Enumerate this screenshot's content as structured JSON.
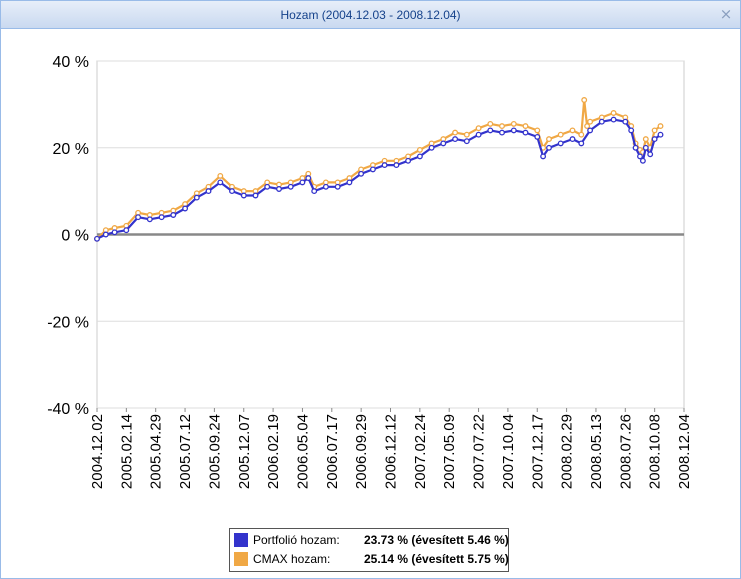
{
  "window": {
    "title": "Hozam (2004.12.03 - 2008.12.04)",
    "close_glyph": "×"
  },
  "colors": {
    "portfolio": "#3333cc",
    "cmax": "#f0a845",
    "zero_line": "#888888",
    "grid": "#dddddd"
  },
  "legend": {
    "items": [
      {
        "label": "Portfolió hozam:",
        "value": "23.73 % (évesített 5.46 %)"
      },
      {
        "label": "CMAX hozam:",
        "value": "25.14 % (évesített 5.75 %)"
      }
    ]
  },
  "chart_data": {
    "type": "line",
    "x_tick_labels": [
      "2004.12.02",
      "2005.02.14",
      "2005.04.29",
      "2005.07.12",
      "2005.09.24",
      "2005.12.07",
      "2006.02.19",
      "2006.05.04",
      "2006.07.17",
      "2006.09.29",
      "2006.12.12",
      "2007.02.24",
      "2007.05.09",
      "2007.07.22",
      "2007.10.04",
      "2007.12.17",
      "2008.02.29",
      "2008.05.13",
      "2008.07.26",
      "2008.10.08",
      "2008.12.04"
    ],
    "y_tick_labels": [
      "40 %",
      "20 %",
      "0 %",
      "-20 %",
      "-40 %"
    ],
    "ylim": [
      -40,
      40
    ],
    "y_unit": "%",
    "series": [
      {
        "name": "Portfolió hozam",
        "color": "#3333cc",
        "points": [
          [
            0,
            -1
          ],
          [
            0.3,
            0
          ],
          [
            0.6,
            0.5
          ],
          [
            1,
            1
          ],
          [
            1.4,
            4
          ],
          [
            1.8,
            3.5
          ],
          [
            2.2,
            4
          ],
          [
            2.6,
            4.5
          ],
          [
            3,
            6
          ],
          [
            3.4,
            8.5
          ],
          [
            3.8,
            10
          ],
          [
            4.2,
            12
          ],
          [
            4.6,
            10
          ],
          [
            5,
            9
          ],
          [
            5.4,
            9
          ],
          [
            5.8,
            11
          ],
          [
            6.2,
            10.5
          ],
          [
            6.6,
            11
          ],
          [
            7,
            12
          ],
          [
            7.2,
            13
          ],
          [
            7.4,
            10
          ],
          [
            7.8,
            11
          ],
          [
            8.2,
            11
          ],
          [
            8.6,
            12
          ],
          [
            9,
            14
          ],
          [
            9.4,
            15
          ],
          [
            9.8,
            16
          ],
          [
            10.2,
            16
          ],
          [
            10.6,
            17
          ],
          [
            11,
            18
          ],
          [
            11.4,
            20
          ],
          [
            11.8,
            21
          ],
          [
            12.2,
            22
          ],
          [
            12.6,
            21.5
          ],
          [
            13,
            23
          ],
          [
            13.4,
            24
          ],
          [
            13.8,
            23.5
          ],
          [
            14.2,
            24
          ],
          [
            14.6,
            23.5
          ],
          [
            15,
            22.5
          ],
          [
            15.2,
            18
          ],
          [
            15.4,
            20
          ],
          [
            15.8,
            21
          ],
          [
            16.2,
            22
          ],
          [
            16.5,
            21
          ],
          [
            16.8,
            24
          ],
          [
            17.2,
            26
          ],
          [
            17.6,
            26.5
          ],
          [
            18,
            26
          ],
          [
            18.2,
            24
          ],
          [
            18.35,
            20
          ],
          [
            18.5,
            18
          ],
          [
            18.6,
            17
          ],
          [
            18.7,
            20
          ],
          [
            18.85,
            18.5
          ],
          [
            19,
            22
          ],
          [
            19.2,
            23
          ]
        ]
      },
      {
        "name": "CMAX hozam",
        "color": "#f0a845",
        "points": [
          [
            0,
            -1
          ],
          [
            0.3,
            1
          ],
          [
            0.6,
            1.5
          ],
          [
            1,
            2
          ],
          [
            1.4,
            5
          ],
          [
            1.8,
            4.5
          ],
          [
            2.2,
            5
          ],
          [
            2.6,
            5.5
          ],
          [
            3,
            7
          ],
          [
            3.4,
            9.5
          ],
          [
            3.8,
            11
          ],
          [
            4.2,
            13.5
          ],
          [
            4.6,
            11
          ],
          [
            5,
            10
          ],
          [
            5.4,
            10
          ],
          [
            5.8,
            12
          ],
          [
            6.2,
            11.5
          ],
          [
            6.6,
            12
          ],
          [
            7,
            13
          ],
          [
            7.2,
            14
          ],
          [
            7.4,
            11
          ],
          [
            7.8,
            12
          ],
          [
            8.2,
            12
          ],
          [
            8.6,
            13
          ],
          [
            9,
            15
          ],
          [
            9.4,
            16
          ],
          [
            9.8,
            17
          ],
          [
            10.2,
            17
          ],
          [
            10.6,
            18
          ],
          [
            11,
            19.5
          ],
          [
            11.4,
            21
          ],
          [
            11.8,
            22
          ],
          [
            12.2,
            23.5
          ],
          [
            12.6,
            23
          ],
          [
            13,
            24.5
          ],
          [
            13.4,
            25.5
          ],
          [
            13.8,
            25
          ],
          [
            14.2,
            25.5
          ],
          [
            14.6,
            25
          ],
          [
            15,
            24
          ],
          [
            15.2,
            20
          ],
          [
            15.4,
            22
          ],
          [
            15.8,
            23
          ],
          [
            16.2,
            24
          ],
          [
            16.5,
            23
          ],
          [
            16.6,
            31
          ],
          [
            16.7,
            25
          ],
          [
            16.8,
            26
          ],
          [
            17.2,
            27
          ],
          [
            17.6,
            28
          ],
          [
            18,
            27
          ],
          [
            18.2,
            25
          ],
          [
            18.35,
            21
          ],
          [
            18.5,
            19.5
          ],
          [
            18.6,
            19
          ],
          [
            18.7,
            22
          ],
          [
            18.85,
            20
          ],
          [
            19,
            24
          ],
          [
            19.2,
            25
          ]
        ]
      }
    ]
  }
}
